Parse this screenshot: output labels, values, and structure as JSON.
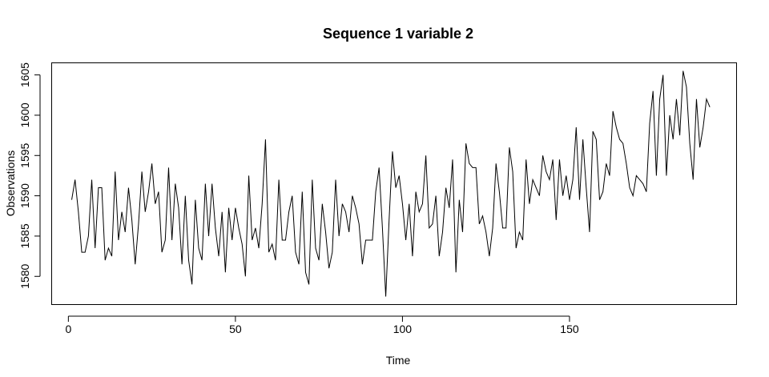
{
  "chart_data": {
    "type": "line",
    "title": "Sequence  1  variable  2",
    "xlabel": "Time",
    "ylabel": "Observations",
    "xlim": [
      -5,
      200
    ],
    "ylim": [
      1576.5,
      1606.5
    ],
    "x_ticks": [
      0,
      50,
      100,
      150
    ],
    "y_ticks": [
      1580,
      1585,
      1590,
      1595,
      1600,
      1605
    ],
    "grid": false,
    "x_start": 1,
    "series": [
      {
        "values": [
          1589.5,
          1592.0,
          1588.0,
          1583.0,
          1583.0,
          1585.0,
          1592.0,
          1583.5,
          1591.0,
          1591.0,
          1582.0,
          1583.5,
          1582.5,
          1593.0,
          1584.5,
          1588.0,
          1585.5,
          1591.0,
          1587.0,
          1581.5,
          1586.5,
          1593.0,
          1588.0,
          1590.5,
          1594.0,
          1589.0,
          1590.5,
          1583.0,
          1584.5,
          1593.5,
          1584.5,
          1591.5,
          1588.5,
          1581.5,
          1590.0,
          1582.0,
          1579.0,
          1589.5,
          1583.5,
          1582.0,
          1591.5,
          1585.0,
          1591.5,
          1586.0,
          1582.5,
          1588.0,
          1580.5,
          1588.5,
          1584.5,
          1588.5,
          1586.0,
          1584.0,
          1580.0,
          1592.5,
          1584.5,
          1586.0,
          1583.5,
          1589.0,
          1597.0,
          1583.0,
          1584.0,
          1582.0,
          1592.0,
          1584.5,
          1584.5,
          1588.0,
          1590.0,
          1583.0,
          1581.5,
          1590.5,
          1580.5,
          1579.0,
          1592.0,
          1583.5,
          1582.0,
          1589.0,
          1585.5,
          1581.0,
          1583.0,
          1592.0,
          1585.0,
          1589.0,
          1588.0,
          1585.5,
          1590.0,
          1588.5,
          1586.5,
          1581.5,
          1584.5,
          1584.5,
          1584.5,
          1590.5,
          1593.5,
          1586.0,
          1577.5,
          1587.0,
          1595.5,
          1591.0,
          1592.5,
          1589.0,
          1584.5,
          1589.0,
          1582.5,
          1590.5,
          1588.0,
          1589.0,
          1595.0,
          1586.0,
          1586.5,
          1590.0,
          1582.5,
          1585.5,
          1591.0,
          1588.5,
          1594.5,
          1580.5,
          1589.5,
          1585.5,
          1596.5,
          1594.0,
          1593.5,
          1593.5,
          1586.5,
          1587.5,
          1585.5,
          1582.5,
          1586.0,
          1594.0,
          1590.5,
          1586.0,
          1586.0,
          1596.0,
          1593.0,
          1583.5,
          1585.5,
          1584.5,
          1594.5,
          1589.0,
          1592.0,
          1591.0,
          1590.0,
          1595.0,
          1593.0,
          1592.0,
          1594.5,
          1587.0,
          1594.5,
          1590.0,
          1592.5,
          1589.5,
          1592.0,
          1598.5,
          1589.5,
          1597.0,
          1591.0,
          1585.5,
          1598.0,
          1597.0,
          1589.5,
          1590.5,
          1594.0,
          1592.5,
          1600.5,
          1598.5,
          1597.0,
          1596.5,
          1594.0,
          1591.0,
          1590.0,
          1592.5,
          1592.0,
          1591.5,
          1590.5,
          1599.0,
          1603.0,
          1592.5,
          1602.0,
          1605.0,
          1592.5,
          1600.0,
          1597.0,
          1602.0,
          1597.5,
          1605.5,
          1603.5,
          1596.5,
          1592.0,
          1602.0,
          1596.0,
          1598.5,
          1602.0,
          1601.0
        ]
      }
    ]
  }
}
